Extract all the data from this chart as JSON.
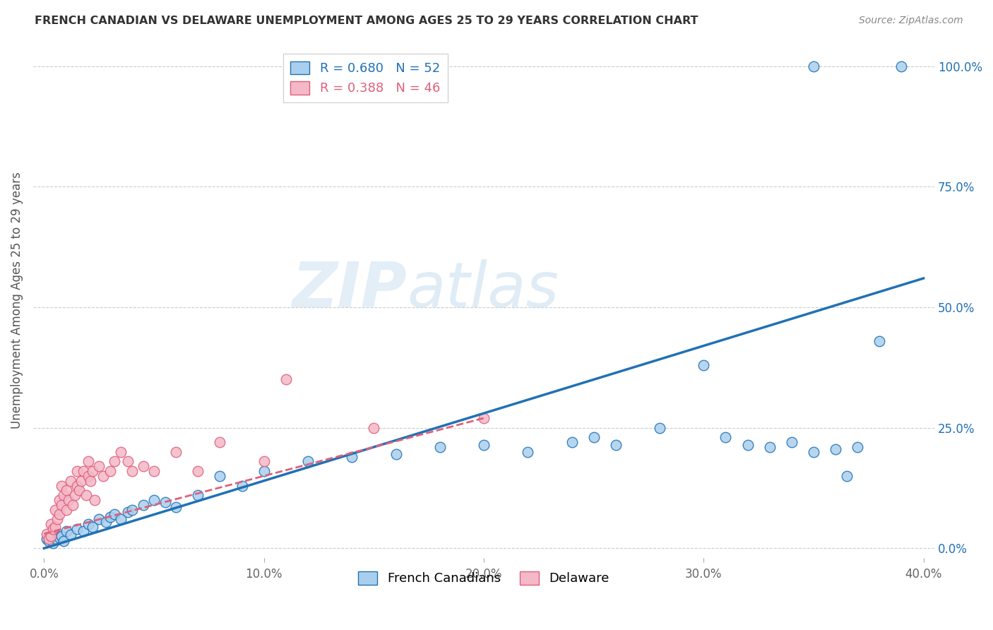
{
  "title": "FRENCH CANADIAN VS DELAWARE UNEMPLOYMENT AMONG AGES 25 TO 29 YEARS CORRELATION CHART",
  "source": "Source: ZipAtlas.com",
  "ylabel": "Unemployment Among Ages 25 to 29 years",
  "xlabel_ticks": [
    "0.0%",
    "10.0%",
    "20.0%",
    "30.0%",
    "40.0%"
  ],
  "xlabel_vals": [
    0.0,
    0.1,
    0.2,
    0.3,
    0.4
  ],
  "ylabel_ticks": [
    "0.0%",
    "25.0%",
    "50.0%",
    "75.0%",
    "100.0%"
  ],
  "ylabel_vals": [
    0.0,
    0.25,
    0.5,
    0.75,
    1.0
  ],
  "xlim": [
    -0.005,
    0.405
  ],
  "ylim": [
    -0.02,
    1.05
  ],
  "blue_R": 0.68,
  "blue_N": 52,
  "pink_R": 0.388,
  "pink_N": 46,
  "blue_color": "#aacfee",
  "pink_color": "#f4b8c8",
  "blue_line_color": "#2171b5",
  "pink_line_color": "#e0607a",
  "watermark_zip": "ZIP",
  "watermark_atlas": "atlas",
  "blue_scatter_x": [
    0.001,
    0.002,
    0.003,
    0.004,
    0.005,
    0.006,
    0.007,
    0.008,
    0.009,
    0.01,
    0.012,
    0.015,
    0.018,
    0.02,
    0.022,
    0.025,
    0.028,
    0.03,
    0.032,
    0.035,
    0.038,
    0.04,
    0.045,
    0.05,
    0.055,
    0.06,
    0.07,
    0.08,
    0.09,
    0.1,
    0.12,
    0.14,
    0.16,
    0.18,
    0.2,
    0.22,
    0.24,
    0.25,
    0.26,
    0.28,
    0.3,
    0.31,
    0.32,
    0.33,
    0.34,
    0.35,
    0.36,
    0.365,
    0.37,
    0.38,
    0.35,
    0.39
  ],
  "blue_scatter_y": [
    0.02,
    0.015,
    0.025,
    0.01,
    0.03,
    0.018,
    0.022,
    0.025,
    0.015,
    0.035,
    0.028,
    0.04,
    0.035,
    0.05,
    0.045,
    0.06,
    0.055,
    0.065,
    0.07,
    0.06,
    0.075,
    0.08,
    0.09,
    0.1,
    0.095,
    0.085,
    0.11,
    0.15,
    0.13,
    0.16,
    0.18,
    0.19,
    0.195,
    0.21,
    0.215,
    0.2,
    0.22,
    0.23,
    0.215,
    0.25,
    0.38,
    0.23,
    0.215,
    0.21,
    0.22,
    0.2,
    0.205,
    0.15,
    0.21,
    0.43,
    1.0,
    1.0
  ],
  "pink_scatter_x": [
    0.001,
    0.002,
    0.003,
    0.003,
    0.004,
    0.005,
    0.005,
    0.006,
    0.007,
    0.007,
    0.008,
    0.008,
    0.009,
    0.01,
    0.01,
    0.011,
    0.012,
    0.013,
    0.014,
    0.015,
    0.015,
    0.016,
    0.017,
    0.018,
    0.019,
    0.02,
    0.02,
    0.021,
    0.022,
    0.023,
    0.025,
    0.027,
    0.03,
    0.032,
    0.035,
    0.038,
    0.04,
    0.045,
    0.05,
    0.06,
    0.07,
    0.08,
    0.1,
    0.11,
    0.15,
    0.2
  ],
  "pink_scatter_y": [
    0.03,
    0.02,
    0.025,
    0.05,
    0.04,
    0.045,
    0.08,
    0.06,
    0.07,
    0.1,
    0.09,
    0.13,
    0.11,
    0.08,
    0.12,
    0.1,
    0.14,
    0.09,
    0.11,
    0.13,
    0.16,
    0.12,
    0.14,
    0.16,
    0.11,
    0.15,
    0.18,
    0.14,
    0.16,
    0.1,
    0.17,
    0.15,
    0.16,
    0.18,
    0.2,
    0.18,
    0.16,
    0.17,
    0.16,
    0.2,
    0.16,
    0.22,
    0.18,
    0.35,
    0.25,
    0.27
  ],
  "blue_regline_x": [
    0.0,
    0.4
  ],
  "blue_regline_y": [
    0.0,
    0.56
  ],
  "pink_regline_x": [
    0.0,
    0.2
  ],
  "pink_regline_y": [
    0.03,
    0.27
  ]
}
